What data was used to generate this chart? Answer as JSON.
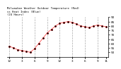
{
  "title": "Milwaukee Weather Outdoor Temperature (Red)\nvs Heat Index (Blue)\n(24 Hours)",
  "bg_color": "#ffffff",
  "grid_color": "#aaaaaa",
  "temp_color": "#ff0000",
  "heat_color": "#000000",
  "hours": [
    0,
    1,
    2,
    3,
    4,
    5,
    6,
    7,
    8,
    9,
    10,
    11,
    12,
    13,
    14,
    15,
    16,
    17,
    18,
    19,
    20,
    21,
    22,
    23
  ],
  "temperature": [
    57,
    55,
    53,
    52,
    51,
    50,
    54,
    60,
    66,
    72,
    76,
    80,
    83,
    84,
    85,
    84,
    82,
    80,
    79,
    78,
    80,
    81,
    80,
    79
  ],
  "heat_index": [
    57,
    55,
    53,
    52,
    51,
    50,
    54,
    60,
    66,
    72,
    76,
    80,
    83,
    84,
    85,
    84,
    82,
    80,
    79,
    78,
    80,
    81,
    80,
    79
  ],
  "ylim": [
    45,
    90
  ],
  "yticks": [
    50,
    55,
    60,
    65,
    70,
    75,
    80,
    85,
    90
  ],
  "xlabel_hours": [
    0,
    3,
    6,
    9,
    12,
    15,
    18,
    21,
    23
  ],
  "xlabel_labels": [
    "12",
    "3",
    "6",
    "9",
    "12",
    "3",
    "6",
    "9",
    "11"
  ],
  "vgrid_positions": [
    0,
    3,
    6,
    9,
    12,
    15,
    18,
    21
  ]
}
